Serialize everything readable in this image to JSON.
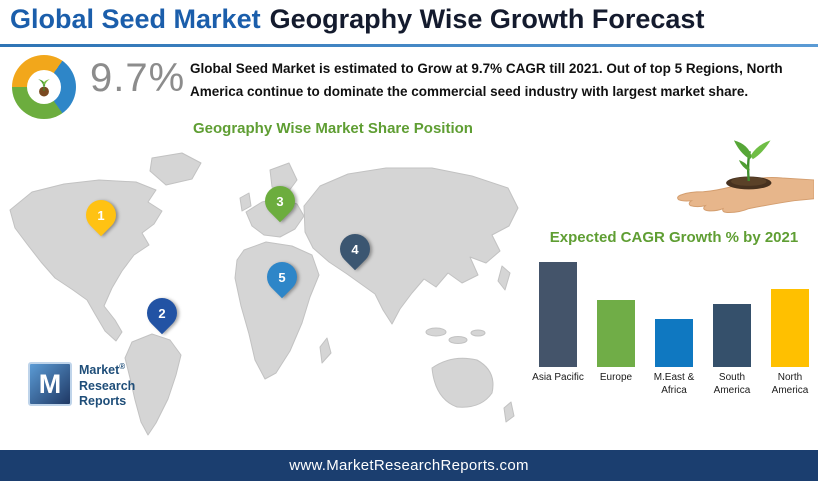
{
  "header": {
    "title_primary": "Global Seed Market",
    "title_secondary": "Geography Wise Growth Forecast"
  },
  "summary": {
    "cagr_value": "9.7%",
    "description": "Global Seed Market is estimated to Grow at 9.7% CAGR till 2021. Out of top 5 Regions, North America continue to dominate the commercial seed industry with largest market share."
  },
  "map_section": {
    "title": "Geography Wise Market Share Position",
    "pins": [
      {
        "label": "1",
        "region": "North America",
        "color": "#FFC213"
      },
      {
        "label": "2",
        "region": "South America",
        "color": "#2253A4"
      },
      {
        "label": "3",
        "region": "Europe",
        "color": "#6CAD3E"
      },
      {
        "label": "4",
        "region": "Asia Pacific",
        "color": "#3B5671"
      },
      {
        "label": "5",
        "region": "Middle East & Africa",
        "color": "#2E86C8"
      }
    ]
  },
  "chart_data": {
    "type": "bar",
    "title": "Expected CAGR Growth % by 2021",
    "categories": [
      "Asia Pacific",
      "Europe",
      "M.East & Africa",
      "South America",
      "North America"
    ],
    "values": [
      100,
      64,
      46,
      60,
      74
    ],
    "colors": [
      "#44546A",
      "#70AD47",
      "#0F78C1",
      "#35506B",
      "#FFC000"
    ],
    "xlabel": "",
    "ylabel": "",
    "ylim": [
      0,
      105
    ],
    "grid": false,
    "legend": "none"
  },
  "logo": {
    "letter": "M",
    "line1": "Market",
    "line2": "Research",
    "line3": "Reports",
    "registered": "®"
  },
  "footer": {
    "url": "www.MarketResearchReports.com"
  }
}
